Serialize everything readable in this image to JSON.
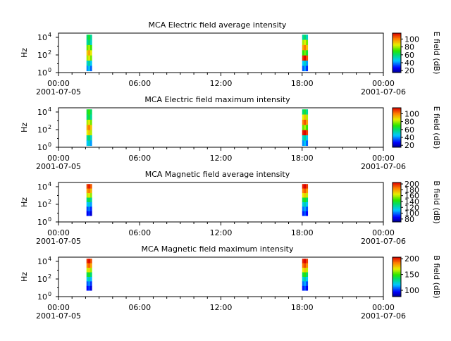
{
  "chart_data": [
    {
      "type": "heatmap",
      "title": "MCA  Electric field average intensity",
      "ylabel": "Hz",
      "ylim": [
        1,
        30000
      ],
      "y_scale": "log",
      "y_ticks": [
        {
          "exp": "0"
        },
        {
          "exp": "2"
        },
        {
          "exp": "4"
        }
      ],
      "x_ticks": [
        "00:00",
        "06:00",
        "12:00",
        "18:00",
        "00:00"
      ],
      "x_dates": [
        "2001-07-05",
        "2001-07-06"
      ],
      "colorbar": {
        "label": "E field (dB)",
        "range": [
          15,
          115
        ],
        "ticks": [
          "20",
          "40",
          "60",
          "80",
          "100"
        ]
      },
      "palette": "rainbow_blue_green_yellow_red",
      "bursts": [
        {
          "start": "02:04",
          "end": "02:28",
          "f_min": 1.5,
          "f_max": 20000,
          "levels": [
            60,
            55,
            75,
            90,
            80,
            50,
            40
          ]
        },
        {
          "start": "18:00",
          "end": "18:25",
          "f_min": 1.5,
          "f_max": 20000,
          "levels": [
            55,
            80,
            95,
            70,
            110,
            45,
            35
          ]
        }
      ]
    },
    {
      "type": "heatmap",
      "title": "MCA  Electric field maximum intensity",
      "ylabel": "Hz",
      "ylim": [
        1,
        30000
      ],
      "y_scale": "log",
      "y_ticks": [
        {
          "exp": "0"
        },
        {
          "exp": "2"
        },
        {
          "exp": "4"
        }
      ],
      "x_ticks": [
        "00:00",
        "06:00",
        "12:00",
        "18:00",
        "00:00"
      ],
      "x_dates": [
        "2001-07-05",
        "2001-07-06"
      ],
      "colorbar": {
        "label": "E field (dB)",
        "range": [
          15,
          115
        ],
        "ticks": [
          "20",
          "40",
          "60",
          "80",
          "100"
        ]
      },
      "palette": "rainbow_blue_green_yellow_red",
      "bursts": [
        {
          "start": "02:04",
          "end": "02:28",
          "f_min": 1.5,
          "f_max": 20000,
          "levels": [
            65,
            60,
            80,
            95,
            85,
            55,
            45
          ]
        },
        {
          "start": "18:00",
          "end": "18:25",
          "f_min": 1.5,
          "f_max": 20000,
          "levels": [
            60,
            85,
            100,
            75,
            112,
            50,
            40
          ]
        }
      ]
    },
    {
      "type": "heatmap",
      "title": "MCA  Magnetic field average intensity",
      "ylabel": "Hz",
      "ylim": [
        1,
        30000
      ],
      "y_scale": "log",
      "y_ticks": [
        {
          "exp": "0"
        },
        {
          "exp": "2"
        },
        {
          "exp": "4"
        }
      ],
      "x_ticks": [
        "00:00",
        "06:00",
        "12:00",
        "18:00",
        "00:00"
      ],
      "x_dates": [
        "2001-07-05",
        "2001-07-06"
      ],
      "colorbar": {
        "label": "B field (dB)",
        "range": [
          70,
          205
        ],
        "ticks": [
          "80",
          "100",
          "120",
          "140",
          "160",
          "180",
          "200"
        ]
      },
      "palette": "rainbow_blue_green_yellow_red",
      "bursts": [
        {
          "start": "02:04",
          "end": "02:28",
          "f_min": 5,
          "f_max": 20000,
          "levels": [
            195,
            180,
            160,
            130,
            110,
            95,
            85
          ]
        },
        {
          "start": "18:00",
          "end": "18:25",
          "f_min": 5,
          "f_max": 20000,
          "levels": [
            200,
            185,
            165,
            135,
            115,
            100,
            90
          ]
        }
      ]
    },
    {
      "type": "heatmap",
      "title": "MCA  Magnetic field maximum intensity",
      "ylabel": "Hz",
      "ylim": [
        1,
        30000
      ],
      "y_scale": "log",
      "y_ticks": [
        {
          "exp": "0"
        },
        {
          "exp": "2"
        },
        {
          "exp": "4"
        }
      ],
      "x_ticks": [
        "00:00",
        "06:00",
        "12:00",
        "18:00",
        "00:00"
      ],
      "x_dates": [
        "2001-07-05",
        "2001-07-06"
      ],
      "colorbar": {
        "label": "B field (dB)",
        "range": [
          80,
          205
        ],
        "ticks": [
          "100",
          "150",
          "200"
        ]
      },
      "palette": "rainbow_blue_green_yellow_red",
      "bursts": [
        {
          "start": "02:04",
          "end": "02:28",
          "f_min": 5,
          "f_max": 20000,
          "levels": [
            198,
            185,
            165,
            140,
            120,
            105,
            95
          ]
        },
        {
          "start": "18:00",
          "end": "18:25",
          "f_min": 5,
          "f_max": 20000,
          "levels": [
            200,
            188,
            168,
            142,
            122,
            108,
            98
          ]
        }
      ]
    }
  ]
}
